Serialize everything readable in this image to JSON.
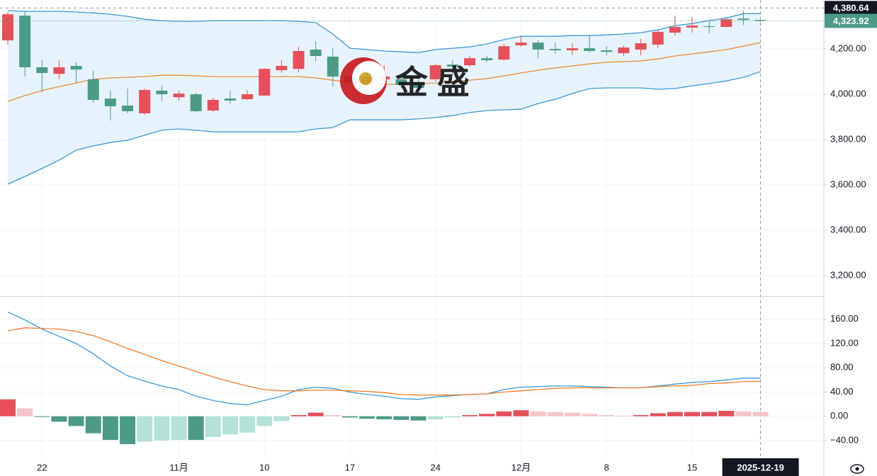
{
  "chart_data": [
    {
      "type": "candlestick",
      "categories": [
        null,
        null,
        "22",
        null,
        null,
        null,
        null,
        null,
        null,
        null,
        "11月",
        null,
        null,
        null,
        null,
        "10",
        null,
        null,
        null,
        null,
        "17",
        null,
        null,
        null,
        null,
        "24",
        null,
        null,
        null,
        null,
        "12月",
        null,
        null,
        null,
        null,
        "8",
        null,
        null,
        null,
        null,
        "15",
        null,
        null,
        null,
        "2025-12-19"
      ],
      "open": [
        4238,
        4347,
        4119,
        4090,
        4125,
        4066,
        3981,
        3950,
        3916,
        4016,
        3987,
        4000,
        3928,
        3981,
        3978,
        3994,
        4106,
        4112,
        4197,
        4166,
        4078,
        4047,
        4066,
        4066,
        4047,
        4066,
        4131,
        4128,
        4159,
        4153,
        4216,
        4228,
        4200,
        4194,
        4203,
        4194,
        4181,
        4197,
        4219,
        4272,
        4294,
        4300,
        4297,
        4334,
        4328
      ],
      "high": [
        4362,
        4369,
        4150,
        4150,
        4141,
        4103,
        4016,
        4025,
        4025,
        4037,
        4016,
        4006,
        3984,
        4016,
        4019,
        4115,
        4150,
        4209,
        4234,
        4203,
        4084,
        4097,
        4128,
        4072,
        4066,
        4134,
        4150,
        4169,
        4169,
        4222,
        4259,
        4237,
        4228,
        4225,
        4259,
        4212,
        4216,
        4244,
        4284,
        4347,
        4341,
        4325,
        4334,
        4369,
        4329
      ],
      "low": [
        4219,
        4078,
        4009,
        4066,
        4047,
        3962,
        3884,
        3916,
        3909,
        3969,
        3972,
        3922,
        3922,
        3959,
        3975,
        3994,
        4094,
        4097,
        4147,
        4034,
        4041,
        4034,
        4047,
        4028,
        4019,
        4056,
        4084,
        4122,
        4141,
        4147,
        4209,
        4159,
        4178,
        4172,
        4184,
        4172,
        4169,
        4172,
        4203,
        4259,
        4272,
        4269,
        4297,
        4306,
        4320
      ],
      "close": [
        4353,
        4119,
        4094,
        4119,
        4109,
        3975,
        3947,
        3925,
        4019,
        4000,
        4003,
        3925,
        3975,
        3972,
        4000,
        4112,
        4125,
        4191,
        4169,
        4078,
        4050,
        4078,
        4078,
        4041,
        4028,
        4128,
        4122,
        4159,
        4150,
        4212,
        4228,
        4197,
        4194,
        4203,
        4191,
        4187,
        4206,
        4225,
        4275,
        4297,
        4303,
        4297,
        4331,
        4328,
        4323.92
      ],
      "up_color": "#e5505a",
      "down_color": "#4c9b86",
      "series": [
        {
          "color": "#3a9ad9",
          "values": [
            4369,
            4366,
            4366,
            4366,
            4363,
            4359,
            4353,
            4344,
            4331,
            4325,
            4322,
            4322,
            4325,
            4325,
            4325,
            4325,
            4325,
            4322,
            4316,
            4266,
            4203,
            4197,
            4191,
            4187,
            4184,
            4197,
            4203,
            4209,
            4222,
            4241,
            4256,
            4256,
            4256,
            4259,
            4259,
            4262,
            4266,
            4272,
            4284,
            4303,
            4312,
            4325,
            4337,
            4356,
            4356
          ]
        },
        {
          "color": "#f08a30",
          "values": [
            3969,
            3994,
            4016,
            4034,
            4050,
            4066,
            4072,
            4075,
            4078,
            4084,
            4084,
            4081,
            4078,
            4078,
            4078,
            4078,
            4078,
            4078,
            4072,
            4062,
            4053,
            4047,
            4044,
            4044,
            4047,
            4050,
            4056,
            4062,
            4069,
            4081,
            4094,
            4106,
            4116,
            4125,
            4134,
            4141,
            4144,
            4147,
            4156,
            4169,
            4178,
            4187,
            4197,
            4212,
            4228
          ]
        },
        {
          "color": "#3a9ad9",
          "values": [
            3603,
            3637,
            3672,
            3709,
            3753,
            3772,
            3787,
            3797,
            3819,
            3841,
            3847,
            3841,
            3834,
            3834,
            3834,
            3834,
            3834,
            3834,
            3847,
            3853,
            3887,
            3887,
            3887,
            3887,
            3891,
            3897,
            3906,
            3919,
            3928,
            3931,
            3934,
            3959,
            3978,
            4003,
            4025,
            4028,
            4028,
            4028,
            4022,
            4025,
            4037,
            4047,
            4059,
            4075,
            4100
          ]
        }
      ],
      "band_fill": "#e7f3fc",
      "ylim": [
        3109,
        4416
      ],
      "yticks": [
        {
          "value": 3200,
          "label": "3,200.00"
        },
        {
          "value": 3400,
          "label": "3,400.00"
        },
        {
          "value": 3600,
          "label": "3,600.00"
        },
        {
          "value": 3800,
          "label": "3,800.00"
        },
        {
          "value": 4000,
          "label": "4,000.00"
        },
        {
          "value": 4200,
          "label": "4,200.00"
        }
      ],
      "crosshair": {
        "value": 4380.64,
        "label": "4,380.64"
      },
      "last_price": {
        "value": 4323.92,
        "label": "4,323.92"
      },
      "watermark": "金 盛"
    },
    {
      "type": "macd",
      "series": [
        {
          "color": "#3a9ad9",
          "values": [
            172,
            159,
            144,
            132,
            120,
            103,
            83,
            67,
            58,
            50,
            44,
            33,
            26,
            21,
            19,
            26,
            33,
            44,
            48,
            46,
            40,
            36,
            33,
            29,
            28,
            32,
            34,
            36,
            37,
            44,
            48,
            49,
            50,
            50,
            49,
            48,
            47,
            47,
            50,
            53,
            56,
            57,
            60,
            63,
            63
          ]
        },
        {
          "color": "#f07d28",
          "values": [
            141,
            146,
            145,
            144,
            140,
            133,
            123,
            112,
            102,
            92,
            83,
            74,
            65,
            57,
            50,
            44,
            42,
            42,
            43,
            43,
            42,
            41,
            39,
            36,
            35,
            35,
            35,
            36,
            37,
            40,
            42,
            44,
            46,
            47,
            47,
            47,
            47,
            47,
            49,
            50,
            51,
            54,
            55,
            57,
            58
          ]
        }
      ],
      "histogram": [
        28,
        13,
        -1,
        -9,
        -16,
        -28,
        -39,
        -46,
        -42,
        -40,
        -39,
        -39,
        -34,
        -30,
        -27,
        -16,
        -8,
        2,
        6,
        2,
        -2,
        -4,
        -5,
        -6,
        -7,
        -5,
        -2,
        2,
        4,
        8,
        10,
        8,
        7,
        6,
        4,
        2,
        1,
        2,
        5,
        7,
        7,
        7,
        9,
        8,
        7
      ],
      "hist_colors": [
        "#e5505a",
        "#f5c4c7",
        "#4c9b86",
        "#b4e2d7"
      ],
      "ylim": [
        -67,
        196
      ],
      "yticks": [
        {
          "value": -40,
          "label": "−40.00"
        },
        {
          "value": 0,
          "label": "0.00"
        },
        {
          "value": 40,
          "label": "40.00"
        },
        {
          "value": 80,
          "label": "80.00"
        },
        {
          "value": 120,
          "label": "120.00"
        },
        {
          "value": 160,
          "label": "160.00"
        }
      ]
    }
  ]
}
